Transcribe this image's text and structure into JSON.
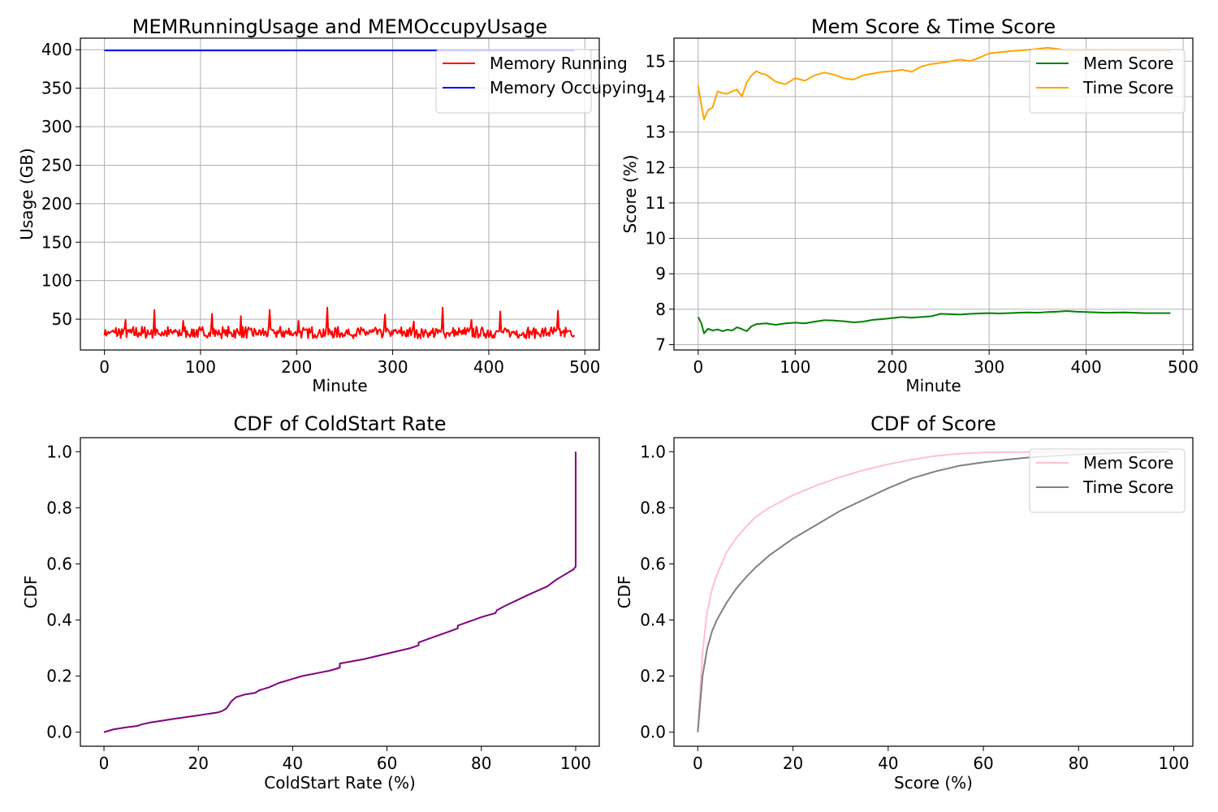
{
  "figure": {
    "background": "#ffffff"
  },
  "chart_data": [
    {
      "type": "line",
      "title": "MEMRunningUsage and MEMOccupyUsage",
      "xlabel": "Minute",
      "ylabel": "Usage (GB)",
      "xlim": [
        -25,
        515
      ],
      "ylim": [
        10,
        415
      ],
      "xticks": [
        0,
        100,
        200,
        300,
        400,
        500
      ],
      "yticks": [
        50,
        100,
        150,
        200,
        250,
        300,
        350,
        400
      ],
      "grid": true,
      "legend_position": "top-right",
      "series": [
        {
          "name": "Memory Running",
          "color": "#ff0000",
          "generator": "memory_running",
          "x_range": [
            0,
            489
          ],
          "base": 31,
          "noise": 6,
          "spikes": [
            [
              22,
              49
            ],
            [
              52,
              62
            ],
            [
              82,
              48
            ],
            [
              112,
              57
            ],
            [
              142,
              54
            ],
            [
              172,
              62
            ],
            [
              202,
              48
            ],
            [
              232,
              65
            ],
            [
              292,
              56
            ],
            [
              322,
              47
            ],
            [
              352,
              65
            ],
            [
              382,
              49
            ],
            [
              412,
              60
            ],
            [
              472,
              61
            ]
          ]
        },
        {
          "name": "Memory Occupying",
          "color": "#0000ff",
          "x": [
            0,
            489
          ],
          "y": [
            399,
            399
          ]
        }
      ]
    },
    {
      "type": "line",
      "title": "Mem Score & Time Score",
      "xlabel": "Minute",
      "ylabel": "Score (%)",
      "xlim": [
        -25,
        510
      ],
      "ylim": [
        6.85,
        15.65
      ],
      "xticks": [
        0,
        100,
        200,
        300,
        400,
        500
      ],
      "yticks": [
        7,
        8,
        9,
        10,
        11,
        12,
        13,
        14,
        15
      ],
      "grid": true,
      "legend_position": "top-right",
      "series": [
        {
          "name": "Mem Score",
          "color": "#008000",
          "x": [
            0,
            3,
            6,
            10,
            15,
            20,
            25,
            30,
            35,
            40,
            45,
            50,
            55,
            60,
            70,
            80,
            90,
            100,
            110,
            120,
            130,
            140,
            150,
            160,
            170,
            180,
            190,
            200,
            210,
            220,
            230,
            240,
            250,
            260,
            270,
            280,
            290,
            300,
            310,
            320,
            330,
            340,
            350,
            360,
            370,
            380,
            390,
            400,
            420,
            440,
            460,
            487
          ],
          "y": [
            7.78,
            7.62,
            7.32,
            7.45,
            7.4,
            7.43,
            7.38,
            7.42,
            7.4,
            7.49,
            7.44,
            7.38,
            7.52,
            7.58,
            7.6,
            7.56,
            7.6,
            7.62,
            7.6,
            7.65,
            7.69,
            7.68,
            7.66,
            7.63,
            7.65,
            7.7,
            7.72,
            7.75,
            7.78,
            7.76,
            7.78,
            7.8,
            7.87,
            7.86,
            7.85,
            7.87,
            7.88,
            7.89,
            7.88,
            7.89,
            7.9,
            7.91,
            7.9,
            7.92,
            7.93,
            7.95,
            7.93,
            7.92,
            7.9,
            7.91,
            7.89,
            7.89
          ]
        },
        {
          "name": "Time Score",
          "color": "#ffa500",
          "x": [
            0,
            3,
            6,
            10,
            15,
            20,
            25,
            30,
            35,
            40,
            45,
            50,
            55,
            60,
            65,
            70,
            80,
            90,
            100,
            110,
            120,
            130,
            140,
            150,
            160,
            170,
            180,
            190,
            200,
            210,
            220,
            230,
            240,
            250,
            260,
            270,
            280,
            290,
            300,
            310,
            320,
            330,
            340,
            350,
            360,
            370,
            380,
            390,
            400,
            420,
            440,
            460,
            487
          ],
          "y": [
            14.3,
            13.8,
            13.35,
            13.62,
            13.7,
            14.15,
            14.1,
            14.08,
            14.15,
            14.2,
            14.0,
            14.4,
            14.6,
            14.72,
            14.65,
            14.62,
            14.42,
            14.35,
            14.52,
            14.45,
            14.6,
            14.68,
            14.62,
            14.52,
            14.48,
            14.6,
            14.65,
            14.7,
            14.72,
            14.76,
            14.7,
            14.85,
            14.92,
            14.95,
            15.0,
            15.05,
            15.0,
            15.1,
            15.22,
            15.25,
            15.28,
            15.3,
            15.32,
            15.35,
            15.38,
            15.35,
            15.3,
            15.3,
            15.3,
            15.32,
            15.3,
            15.3,
            15.3
          ]
        }
      ]
    },
    {
      "type": "line",
      "title": "CDF of ColdStart Rate",
      "xlabel": "ColdStart Rate (%)",
      "ylabel": "CDF",
      "xlim": [
        -5,
        105
      ],
      "ylim": [
        -0.05,
        1.05
      ],
      "xticks": [
        0,
        20,
        40,
        60,
        80,
        100
      ],
      "yticks": [
        0.0,
        0.2,
        0.4,
        0.6,
        0.8,
        1.0
      ],
      "grid": false,
      "series": [
        {
          "name": "",
          "color": "#800080",
          "x": [
            0,
            2,
            5,
            7,
            8,
            10,
            15,
            20,
            22,
            24,
            25,
            26,
            27,
            28,
            30,
            32,
            33,
            35,
            37,
            40,
            42,
            45,
            48,
            50,
            50,
            55,
            60,
            65,
            66.7,
            66.7,
            70,
            75,
            75,
            80,
            83,
            83.3,
            85,
            90,
            94,
            96,
            98,
            99.5,
            100,
            100
          ],
          "y": [
            0.0,
            0.01,
            0.018,
            0.022,
            0.028,
            0.035,
            0.048,
            0.06,
            0.065,
            0.07,
            0.075,
            0.085,
            0.11,
            0.125,
            0.135,
            0.14,
            0.15,
            0.16,
            0.175,
            0.19,
            0.2,
            0.21,
            0.22,
            0.23,
            0.245,
            0.26,
            0.28,
            0.3,
            0.31,
            0.32,
            0.34,
            0.37,
            0.38,
            0.41,
            0.425,
            0.435,
            0.45,
            0.49,
            0.52,
            0.545,
            0.565,
            0.58,
            0.59,
            1.0
          ]
        }
      ]
    },
    {
      "type": "line",
      "title": "CDF of Score",
      "xlabel": "Score (%)",
      "ylabel": "CDF",
      "xlim": [
        -5,
        104
      ],
      "ylim": [
        -0.05,
        1.05
      ],
      "xticks": [
        0,
        20,
        40,
        60,
        80,
        100
      ],
      "yticks": [
        0.0,
        0.2,
        0.4,
        0.6,
        0.8,
        1.0
      ],
      "grid": false,
      "legend_position": "top-right",
      "series": [
        {
          "name": "Mem Score",
          "color": "#ffc0cb",
          "x": [
            0,
            0.5,
            1,
            1.5,
            2,
            3,
            4,
            5,
            6,
            8,
            10,
            12,
            15,
            20,
            25,
            30,
            35,
            40,
            45,
            50,
            55,
            60,
            70,
            80,
            90,
            99
          ],
          "y": [
            0.0,
            0.15,
            0.28,
            0.36,
            0.43,
            0.51,
            0.56,
            0.6,
            0.64,
            0.69,
            0.73,
            0.765,
            0.8,
            0.845,
            0.88,
            0.91,
            0.935,
            0.955,
            0.972,
            0.985,
            0.993,
            0.997,
            0.999,
            1.0,
            1.0,
            1.0
          ]
        },
        {
          "name": "Time Score",
          "color": "#808080",
          "x": [
            0,
            0.5,
            1,
            2,
            3,
            4,
            5,
            6,
            8,
            10,
            12,
            15,
            20,
            25,
            30,
            35,
            40,
            45,
            50,
            55,
            60,
            65,
            70,
            80,
            90,
            99
          ],
          "y": [
            0.0,
            0.1,
            0.2,
            0.3,
            0.36,
            0.4,
            0.43,
            0.46,
            0.51,
            0.55,
            0.585,
            0.63,
            0.69,
            0.74,
            0.79,
            0.83,
            0.87,
            0.905,
            0.93,
            0.95,
            0.962,
            0.972,
            0.98,
            0.99,
            0.996,
            1.0
          ]
        }
      ]
    }
  ]
}
